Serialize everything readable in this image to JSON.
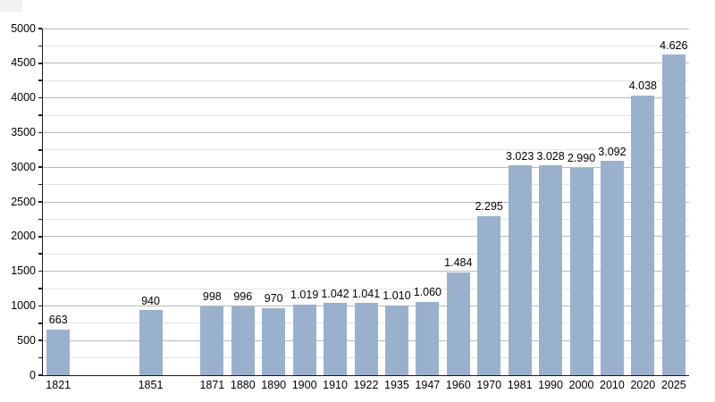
{
  "window": {
    "background": "#ffffff"
  },
  "chart_data": {
    "type": "bar",
    "title": "",
    "xlabel": "",
    "ylabel": "",
    "categories": [
      "1821",
      "1851",
      "1871",
      "1880",
      "1890",
      "1900",
      "1910",
      "1922",
      "1935",
      "1947",
      "1960",
      "1970",
      "1981",
      "1990",
      "2000",
      "2010",
      "2020",
      "2025"
    ],
    "values": [
      663,
      940,
      998,
      996,
      970,
      1019,
      1042,
      1041,
      1010,
      1060,
      1484,
      2295,
      3023,
      3028,
      2990,
      3092,
      4038,
      4626
    ],
    "value_labels": [
      "663",
      "940",
      "998",
      "996",
      "970",
      "1.019",
      "1.042",
      "1.041",
      "1.010",
      "1.060",
      "1.484",
      "2.295",
      "3.023",
      "3.028",
      "2.990",
      "3.092",
      "4.038",
      "4.626"
    ],
    "slot_index": [
      0,
      3,
      5,
      6,
      7,
      8,
      9,
      10,
      11,
      12,
      13,
      14,
      15,
      16,
      17,
      18,
      19,
      20
    ],
    "total_slots": 21,
    "ylim": [
      0,
      5000
    ],
    "y_major_step": 500,
    "y_minor_step": 250,
    "y_tick_labels": [
      "0",
      "500",
      "1000",
      "1500",
      "2000",
      "2500",
      "3000",
      "3500",
      "4000",
      "4500",
      "5000"
    ],
    "grid": "horizontal major+minor",
    "legend": "none",
    "bar_color": "#9ab1cd"
  },
  "style": {
    "bar_fill": "#9ab1cd",
    "grid_major_color": "#b9b9b9",
    "grid_minor_color": "#e3e3e3",
    "axis_color": "#1c1c1c",
    "label_color": "#000000",
    "background": "#ffffff",
    "artifact_color": "#f2f2f2"
  }
}
